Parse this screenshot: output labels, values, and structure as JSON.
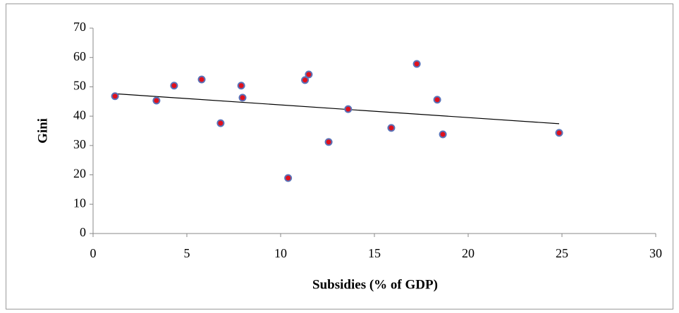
{
  "chart_data": {
    "type": "scatter",
    "x_label": "Subsidies (% of GDP)",
    "y_label": "Gini",
    "series": [
      {
        "x": [
          1.17,
          3.38,
          4.32,
          5.79,
          6.8,
          7.9,
          7.97,
          10.4,
          11.3,
          11.5,
          12.56,
          13.6,
          15.9,
          17.26,
          18.35,
          18.65,
          24.85
        ],
        "values": [
          46.8,
          45.3,
          50.4,
          52.5,
          37.6,
          50.4,
          46.3,
          18.9,
          52.3,
          54.2,
          31.2,
          42.4,
          36.0,
          57.8,
          45.6,
          33.8,
          34.3
        ],
        "color": "#e0101c",
        "edge_color": "#5a72b8"
      }
    ],
    "trendline": true,
    "trendline_color": "#000000",
    "xlim": [
      0,
      30
    ],
    "xticks": [
      0,
      5,
      10,
      15,
      20,
      25,
      30
    ],
    "ylim": [
      0,
      70
    ],
    "yticks": [
      0,
      10,
      20,
      30,
      40,
      50,
      60,
      70
    ],
    "grid": false
  }
}
